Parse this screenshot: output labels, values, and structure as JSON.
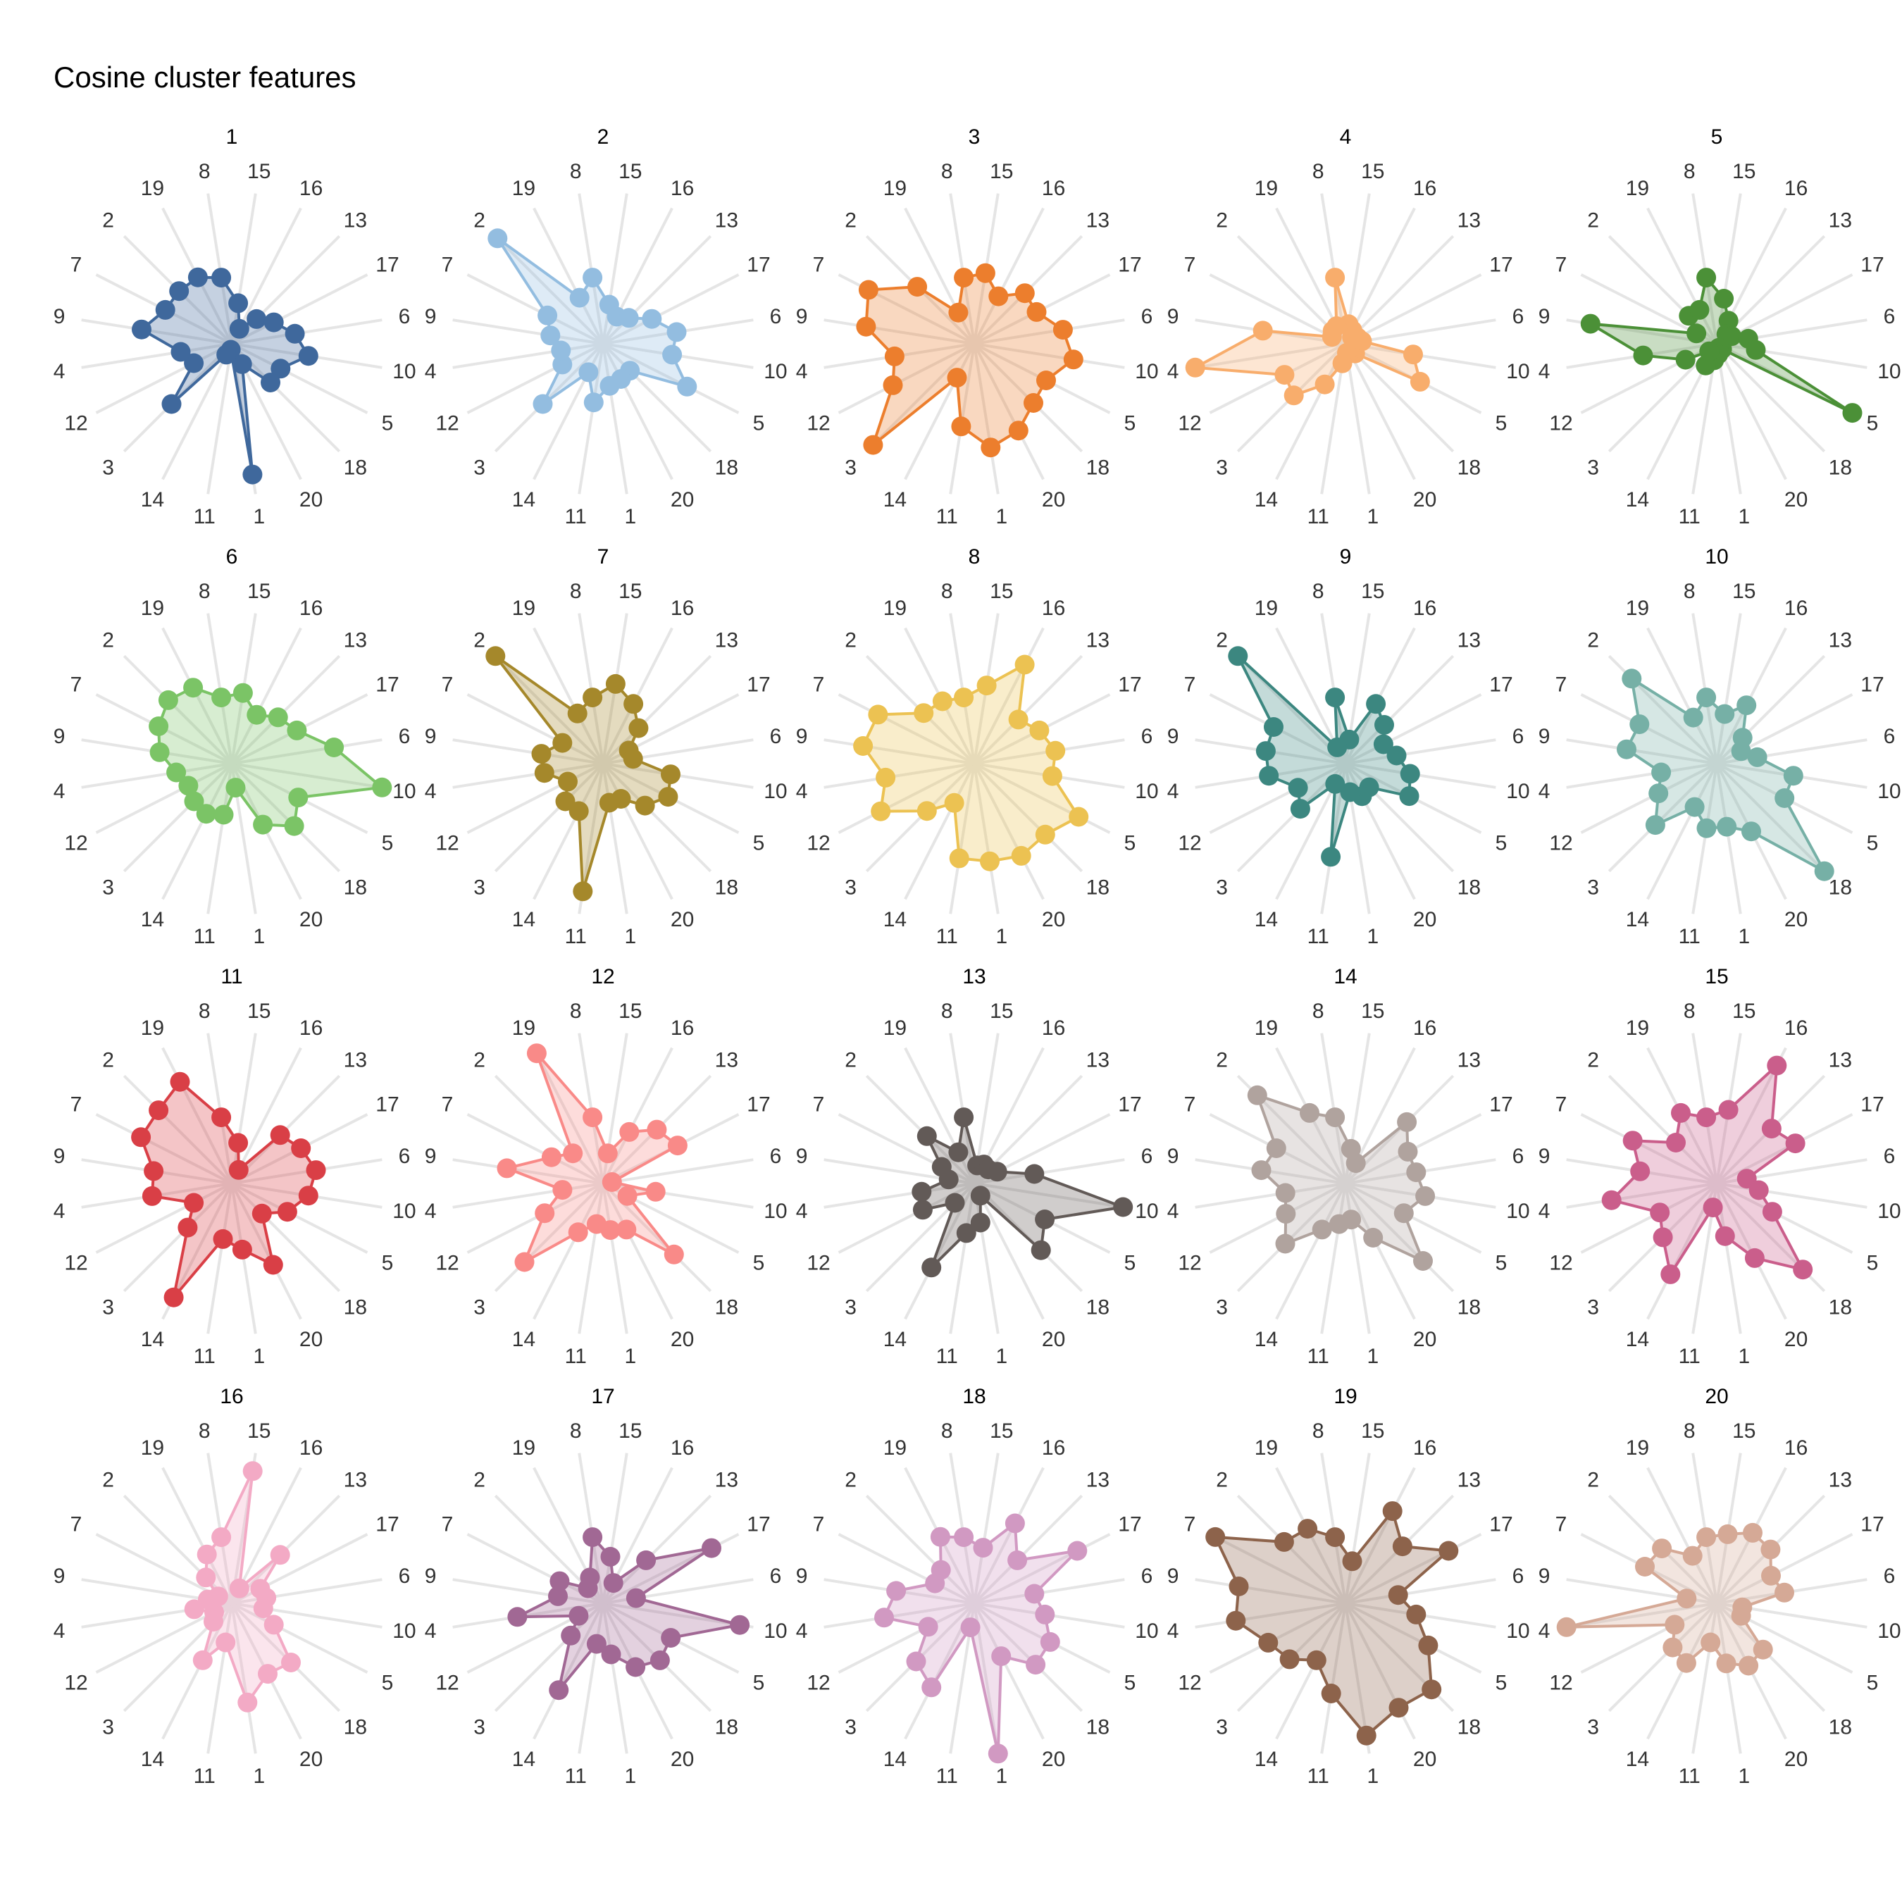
{
  "title": "Cosine cluster features",
  "chart_data": {
    "type": "radar",
    "title": "Cosine cluster features",
    "axes": [
      "15",
      "16",
      "13",
      "17",
      "6",
      "10",
      "5",
      "18",
      "20",
      "1",
      "11",
      "14",
      "3",
      "12",
      "4",
      "9",
      "7",
      "2",
      "19",
      "8"
    ],
    "rlim": [
      0,
      1
    ],
    "grid": true,
    "panels": [
      {
        "name": "1",
        "color": "#3f689c",
        "values": [
          0.27,
          0.11,
          0.23,
          0.31,
          0.42,
          0.51,
          0.36,
          0.36,
          0.15,
          0.87,
          0.04,
          0.08,
          0.56,
          0.28,
          0.34,
          0.6,
          0.49,
          0.49,
          0.49,
          0.44
        ]
      },
      {
        "name": "2",
        "color": "#93bde0",
        "values": [
          0.26,
          0.2,
          0.24,
          0.36,
          0.49,
          0.46,
          0.62,
          0.25,
          0.26,
          0.28,
          0.39,
          0.21,
          0.56,
          0.3,
          0.28,
          0.35,
          0.41,
          0.98,
          0.34,
          0.44
        ]
      },
      {
        "name": "3",
        "color": "#ec7e2d",
        "values": [
          0.47,
          0.35,
          0.47,
          0.46,
          0.59,
          0.66,
          0.53,
          0.55,
          0.64,
          0.69,
          0.55,
          0.25,
          0.94,
          0.6,
          0.53,
          0.72,
          0.78,
          0.53,
          0.23,
          0.44
        ]
      },
      {
        "name": "4",
        "color": "#f8ad6c",
        "values": [
          0.13,
          0.1,
          0.06,
          0.09,
          0.11,
          0.45,
          0.55,
          0.09,
          0.06,
          0.06,
          0.13,
          0.3,
          0.48,
          0.45,
          1.0,
          0.55,
          0.1,
          0.12,
          0.13,
          0.44
        ]
      },
      {
        "name": "5",
        "color": "#4b9037",
        "values": [
          0.3,
          0.17,
          0.09,
          0.11,
          0.21,
          0.26,
          1.0,
          0.05,
          0.03,
          0.07,
          0.11,
          0.16,
          0.07,
          0.23,
          0.49,
          0.84,
          0.15,
          0.26,
          0.25,
          0.44
        ]
      },
      {
        "name": "6",
        "color": "#7bc466",
        "values": [
          0.47,
          0.36,
          0.43,
          0.48,
          0.68,
          1.0,
          0.49,
          0.58,
          0.45,
          0.16,
          0.34,
          0.37,
          0.35,
          0.32,
          0.37,
          0.48,
          0.54,
          0.59,
          0.56,
          0.44
        ]
      },
      {
        "name": "7",
        "color": "#a5882b",
        "values": [
          0.53,
          0.44,
          0.33,
          0.19,
          0.2,
          0.45,
          0.48,
          0.39,
          0.26,
          0.26,
          0.85,
          0.35,
          0.35,
          0.26,
          0.39,
          0.41,
          0.3,
          1.0,
          0.37,
          0.44
        ]
      },
      {
        "name": "8",
        "color": "#ecc252",
        "values": [
          0.52,
          0.73,
          0.41,
          0.48,
          0.54,
          0.52,
          0.77,
          0.66,
          0.68,
          0.65,
          0.63,
          0.29,
          0.44,
          0.69,
          0.59,
          0.74,
          0.71,
          0.47,
          0.46,
          0.44
        ]
      },
      {
        "name": "9",
        "color": "#3c8780",
        "values": [
          0.16,
          0.44,
          0.36,
          0.28,
          0.34,
          0.43,
          0.47,
          0.22,
          0.24,
          0.19,
          0.62,
          0.15,
          0.42,
          0.35,
          0.51,
          0.53,
          0.53,
          1.0,
          0.12,
          0.44
        ]
      },
      {
        "name": "10",
        "color": "#76b0a6",
        "values": [
          0.33,
          0.43,
          0.24,
          0.18,
          0.27,
          0.51,
          0.5,
          1.0,
          0.5,
          0.42,
          0.43,
          0.32,
          0.57,
          0.43,
          0.37,
          0.6,
          0.57,
          0.79,
          0.34,
          0.44
        ]
      },
      {
        "name": "11",
        "color": "#d93f46",
        "values": [
          0.27,
          0.1,
          0.45,
          0.51,
          0.56,
          0.51,
          0.41,
          0.28,
          0.6,
          0.44,
          0.37,
          0.84,
          0.41,
          0.28,
          0.53,
          0.52,
          0.67,
          0.68,
          0.75,
          0.44
        ]
      },
      {
        "name": "12",
        "color": "#f98a88",
        "values": [
          0.2,
          0.38,
          0.5,
          0.55,
          0.06,
          0.35,
          0.18,
          0.66,
          0.34,
          0.31,
          0.27,
          0.36,
          0.73,
          0.43,
          0.27,
          0.64,
          0.38,
          0.28,
          0.96,
          0.44
        ]
      },
      {
        "name": "13",
        "color": "#625a57",
        "values": [
          0.12,
          0.14,
          0.13,
          0.17,
          0.4,
          0.99,
          0.52,
          0.62,
          0.09,
          0.26,
          0.33,
          0.62,
          0.18,
          0.38,
          0.35,
          0.17,
          0.24,
          0.44,
          0.23,
          0.44
        ]
      },
      {
        "name": "14",
        "color": "#b0a39e",
        "values": [
          0.23,
          0.15,
          0.57,
          0.46,
          0.47,
          0.53,
          0.43,
          0.72,
          0.4,
          0.24,
          0.27,
          0.34,
          0.56,
          0.44,
          0.4,
          0.56,
          0.51,
          0.82,
          0.52,
          0.44
        ]
      },
      {
        "name": "15",
        "color": "#ca5e8b",
        "values": [
          0.49,
          0.87,
          0.51,
          0.58,
          0.2,
          0.28,
          0.41,
          0.8,
          0.55,
          0.35,
          0.16,
          0.67,
          0.5,
          0.42,
          0.7,
          0.51,
          0.62,
          0.38,
          0.52,
          0.44
        ]
      },
      {
        "name": "16",
        "color": "#f3aac5",
        "values": [
          0.88,
          0.11,
          0.45,
          0.21,
          0.23,
          0.21,
          0.31,
          0.55,
          0.52,
          0.66,
          0.26,
          0.42,
          0.17,
          0.13,
          0.25,
          0.16,
          0.1,
          0.24,
          0.36,
          0.44
        ]
      },
      {
        "name": "17",
        "color": "#a16894",
        "values": [
          0.31,
          0.15,
          0.4,
          0.8,
          0.22,
          0.91,
          0.5,
          0.53,
          0.47,
          0.34,
          0.27,
          0.64,
          0.3,
          0.18,
          0.57,
          0.3,
          0.32,
          0.14,
          0.19,
          0.44
        ]
      },
      {
        "name": "18",
        "color": "#d199c2",
        "values": [
          0.37,
          0.59,
          0.4,
          0.76,
          0.4,
          0.47,
          0.56,
          0.57,
          0.39,
          1.0,
          0.16,
          0.62,
          0.54,
          0.34,
          0.6,
          0.52,
          0.29,
          0.31,
          0.49,
          0.44
        ]
      },
      {
        "name": "19",
        "color": "#8d634b",
        "values": [
          0.28,
          0.68,
          0.53,
          0.76,
          0.35,
          0.47,
          0.61,
          0.8,
          0.77,
          0.88,
          0.6,
          0.42,
          0.52,
          0.57,
          0.73,
          0.71,
          0.96,
          0.57,
          0.55,
          0.44
        ]
      },
      {
        "name": "20",
        "color": "#d5a996",
        "values": [
          0.46,
          0.52,
          0.5,
          0.4,
          0.45,
          0.17,
          0.18,
          0.43,
          0.46,
          0.4,
          0.26,
          0.44,
          0.41,
          0.31,
          1.0,
          0.2,
          0.53,
          0.51,
          0.35,
          0.44
        ]
      }
    ]
  }
}
